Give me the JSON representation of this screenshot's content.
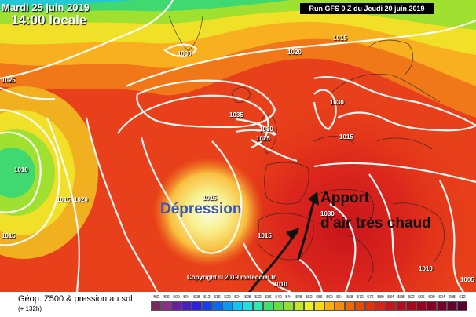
{
  "header": {
    "date": "Mardi 25 juin 2019",
    "local_time": "14:00 locale",
    "run": "Run GFS 0 Z du Jeudi 20 juin 2019"
  },
  "map": {
    "isobar_labels": [
      "1015",
      "1020",
      "1025",
      "1030",
      "1035",
      "1030",
      "1025",
      "1030",
      "1010",
      "1015",
      "1020",
      "1015",
      "1015",
      "1030",
      "1015",
      "1010",
      "1010",
      "1005",
      "1015"
    ],
    "annotations": {
      "depression": "Dépression",
      "apport_line1": "Apport",
      "apport_line2": "d'air très chaud"
    },
    "copyright": "Copyright © 2019 meteociel.fr"
  },
  "footer": {
    "title": "Géop. Z500 & pression au sol",
    "subtitle": "(+ 132h)"
  },
  "legend": {
    "values": [
      "492",
      "496",
      "500",
      "504",
      "508",
      "512",
      "516",
      "520",
      "524",
      "528",
      "532",
      "536",
      "540",
      "544",
      "548",
      "552",
      "556",
      "560",
      "564",
      "568",
      "572",
      "576",
      "580",
      "584",
      "588",
      "592",
      "596",
      "600",
      "604",
      "608",
      "612"
    ],
    "colors": [
      "#7a2a5a",
      "#8c2f8c",
      "#6a1fa0",
      "#4a1fc0",
      "#2a22dc",
      "#1040f0",
      "#0a6af5",
      "#0a98f5",
      "#10c4f5",
      "#20e0e0",
      "#30e8b0",
      "#40e070",
      "#60e040",
      "#90e030",
      "#c0e820",
      "#f0f020",
      "#f8d818",
      "#f8b010",
      "#f88c08",
      "#f06804",
      "#e84a08",
      "#e0320c",
      "#d82418",
      "#c8141c",
      "#b80c1c",
      "#a8081c",
      "#980420",
      "#880024",
      "#780028",
      "#68002c",
      "#580030"
    ]
  }
}
